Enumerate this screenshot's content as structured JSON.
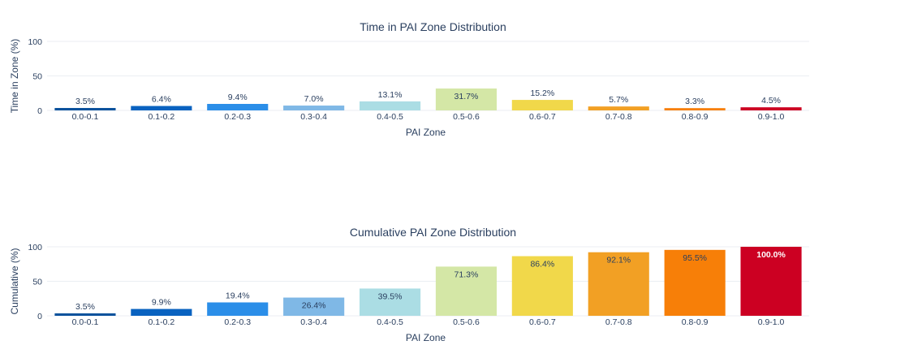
{
  "chart_data": [
    {
      "type": "bar",
      "title": "Time in PAI Zone Distribution",
      "xlabel": "PAI Zone",
      "ylabel": "Time in Zone (%)",
      "ylim": [
        0,
        100
      ],
      "yticks": [
        "0",
        "50",
        "100"
      ],
      "grid": true,
      "categories": [
        "0.0-0.1",
        "0.1-0.2",
        "0.2-0.3",
        "0.3-0.4",
        "0.4-0.5",
        "0.5-0.6",
        "0.6-0.7",
        "0.7-0.8",
        "0.8-0.9",
        "0.9-1.0"
      ],
      "values": [
        3.5,
        6.4,
        9.4,
        7.0,
        13.1,
        31.7,
        15.2,
        5.7,
        3.3,
        4.5
      ],
      "labels": [
        "3.5%",
        "6.4%",
        "9.4%",
        "7.0%",
        "13.1%",
        "31.7%",
        "15.2%",
        "5.7%",
        "3.3%",
        "4.5%"
      ]
    },
    {
      "type": "bar",
      "title": "Cumulative PAI Zone Distribution",
      "xlabel": "PAI Zone",
      "ylabel": "Cumulative (%)",
      "ylim": [
        0,
        100
      ],
      "yticks": [
        "0",
        "50",
        "100"
      ],
      "grid": true,
      "categories": [
        "0.0-0.1",
        "0.1-0.2",
        "0.2-0.3",
        "0.3-0.4",
        "0.4-0.5",
        "0.5-0.6",
        "0.6-0.7",
        "0.7-0.8",
        "0.8-0.9",
        "0.9-1.0"
      ],
      "values": [
        3.5,
        9.9,
        19.4,
        26.4,
        39.5,
        71.3,
        86.4,
        92.1,
        95.5,
        100.0
      ],
      "labels": [
        "3.5%",
        "9.9%",
        "19.4%",
        "26.4%",
        "39.5%",
        "71.3%",
        "86.4%",
        "92.1%",
        "95.5%",
        "100.0%"
      ]
    }
  ],
  "colors": {
    "bars": [
      "#08519c",
      "#0962c0",
      "#2b8ee8",
      "#7fb8e6",
      "#abdde4",
      "#d4e7a6",
      "#f1d84a",
      "#f2a024",
      "#f77f08",
      "#cc0022"
    ],
    "text": "#2a3f5f",
    "grid": "#ebeef3"
  }
}
